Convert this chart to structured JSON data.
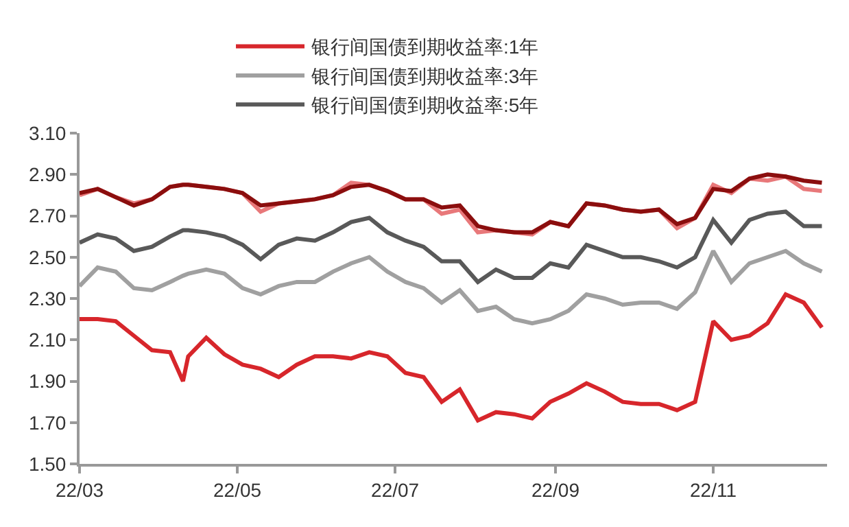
{
  "chart_data": {
    "type": "line",
    "x": [
      "--03-01",
      "--03-08",
      "--03-15",
      "--03-22",
      "--03-29",
      "--04-05",
      "--04-10",
      "--04-12",
      "--04-19",
      "--04-26",
      "--05-03",
      "--05-10",
      "--05-17",
      "--05-24",
      "--05-31",
      "--06-07",
      "--06-14",
      "--06-21",
      "--06-28",
      "--07-05",
      "--07-12",
      "--07-19",
      "--07-26",
      "--08-02",
      "--08-09",
      "--08-16",
      "--08-23",
      "--08-30",
      "--09-06",
      "--09-13",
      "--09-20",
      "--09-27",
      "--10-04",
      "--10-11",
      "--10-18",
      "--10-25",
      "--11-01",
      "--11-08",
      "--11-15",
      "--11-22",
      "--11-29",
      "--12-06",
      "--12-13"
    ],
    "series": [
      {
        "name": "银行间国债到期收益率:1年",
        "color": "#d7262b",
        "values": [
          2.2,
          2.2,
          2.19,
          2.12,
          2.05,
          2.04,
          1.9,
          2.02,
          2.11,
          2.03,
          1.98,
          1.96,
          1.92,
          1.98,
          2.02,
          2.02,
          2.01,
          2.04,
          2.02,
          1.94,
          1.92,
          1.8,
          1.86,
          1.71,
          1.75,
          1.74,
          1.72,
          1.8,
          1.84,
          1.89,
          1.85,
          1.8,
          1.79,
          1.79,
          1.76,
          1.8,
          2.19,
          2.1,
          2.12,
          2.18,
          2.32,
          2.28,
          2.16
        ]
      },
      {
        "name": "银行间国债到期收益率:3年",
        "color": "#a0a0a0",
        "values": [
          2.36,
          2.45,
          2.43,
          2.35,
          2.34,
          2.38,
          2.41,
          2.42,
          2.44,
          2.42,
          2.35,
          2.32,
          2.36,
          2.38,
          2.38,
          2.43,
          2.47,
          2.5,
          2.43,
          2.38,
          2.35,
          2.28,
          2.34,
          2.24,
          2.26,
          2.2,
          2.18,
          2.2,
          2.24,
          2.32,
          2.3,
          2.27,
          2.28,
          2.28,
          2.25,
          2.33,
          2.53,
          2.38,
          2.47,
          2.5,
          2.53,
          2.47,
          2.43
        ]
      },
      {
        "name": "银行间国债到期收益率:5年",
        "color": "#595959",
        "values": [
          2.57,
          2.61,
          2.59,
          2.53,
          2.55,
          2.6,
          2.63,
          2.63,
          2.62,
          2.6,
          2.56,
          2.49,
          2.56,
          2.59,
          2.58,
          2.62,
          2.67,
          2.69,
          2.62,
          2.58,
          2.55,
          2.48,
          2.48,
          2.38,
          2.44,
          2.4,
          2.4,
          2.47,
          2.45,
          2.56,
          2.53,
          2.5,
          2.5,
          2.48,
          2.45,
          2.5,
          2.68,
          2.57,
          2.68,
          2.71,
          2.72,
          2.65,
          2.65
        ]
      },
      {
        "color": "#e8787a",
        "values": [
          2.8,
          2.83,
          2.79,
          2.76,
          2.78,
          2.84,
          2.85,
          2.85,
          2.84,
          2.83,
          2.81,
          2.72,
          2.76,
          2.77,
          2.78,
          2.8,
          2.86,
          2.85,
          2.82,
          2.78,
          2.78,
          2.71,
          2.73,
          2.62,
          2.63,
          2.62,
          2.61,
          2.67,
          2.65,
          2.76,
          2.75,
          2.73,
          2.72,
          2.73,
          2.64,
          2.69,
          2.85,
          2.81,
          2.88,
          2.87,
          2.89,
          2.83,
          2.82
        ]
      },
      {
        "color": "#8b0e0e",
        "values": [
          2.81,
          2.83,
          2.79,
          2.75,
          2.78,
          2.84,
          2.85,
          2.85,
          2.84,
          2.83,
          2.81,
          2.75,
          2.76,
          2.77,
          2.78,
          2.8,
          2.84,
          2.85,
          2.82,
          2.78,
          2.78,
          2.74,
          2.75,
          2.65,
          2.63,
          2.62,
          2.62,
          2.67,
          2.65,
          2.76,
          2.75,
          2.73,
          2.72,
          2.73,
          2.66,
          2.69,
          2.83,
          2.82,
          2.88,
          2.9,
          2.89,
          2.87,
          2.86
        ]
      }
    ],
    "xlim": [
      "--03-01",
      "--12-15"
    ],
    "xticks": [
      {
        "value": "--03-01",
        "label": "22/03"
      },
      {
        "value": "--05-01",
        "label": "22/05"
      },
      {
        "value": "--07-01",
        "label": "22/07"
      },
      {
        "value": "--09-01",
        "label": "22/09"
      },
      {
        "value": "--11-01",
        "label": "22/11"
      }
    ],
    "ylim": [
      1.5,
      3.1
    ],
    "yticks": [
      {
        "value": 1.5,
        "label": "1.50"
      },
      {
        "value": 1.7,
        "label": "1.70"
      },
      {
        "value": 1.9,
        "label": "1.90"
      },
      {
        "value": 2.1,
        "label": "2.10"
      },
      {
        "value": 2.3,
        "label": "2.30"
      },
      {
        "value": 2.5,
        "label": "2.50"
      },
      {
        "value": 2.7,
        "label": "2.70"
      },
      {
        "value": 2.9,
        "label": "2.90"
      },
      {
        "value": 3.1,
        "label": "3.10"
      }
    ],
    "grid": false,
    "legend": "top",
    "marker": "none",
    "line_style": "solid"
  }
}
